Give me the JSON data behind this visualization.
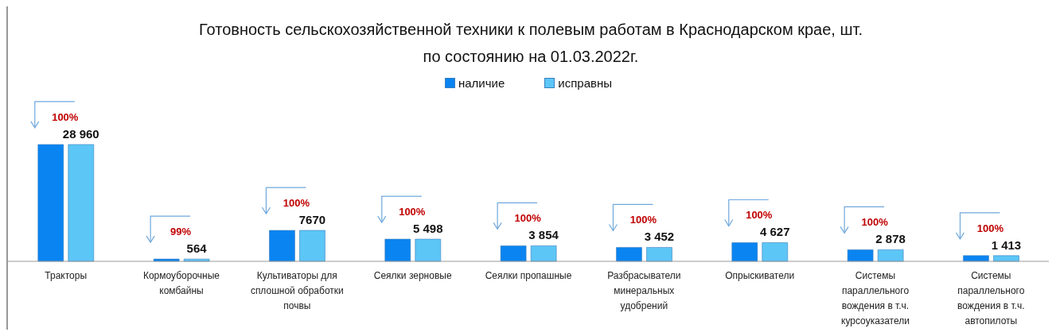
{
  "chart_data": {
    "type": "bar",
    "title": "Готовность сельскохозяйственной техники к полевым работам в Краснодарском крае, шт.",
    "subtitle": "по состоянию на 01.03.2022г.",
    "categories": [
      "Тракторы",
      "Кормоуборочные комбайны",
      "Культиваторы для сплошной обработки почвы",
      "Сеялки зерновые",
      "Сеялки пропашные",
      "Разбрасыватели минеральных удобрений",
      "Опрыскиватели",
      "Системы параллельного вождения в т.ч. курсоуказатели",
      "Системы параллельного вождения в т.ч. автопилоты"
    ],
    "series": [
      {
        "name": "наличие",
        "color": "#0a84f0",
        "values": [
          28960,
          570,
          7670,
          5498,
          3854,
          3452,
          4627,
          2878,
          1413
        ]
      },
      {
        "name": "исправны",
        "color": "#5cc6f6",
        "values": [
          28960,
          564,
          7670,
          5498,
          3854,
          3452,
          4627,
          2878,
          1413
        ],
        "value_labels": [
          "28 960",
          "564",
          "7670",
          "5 498",
          "3 854",
          "3 452",
          "4 627",
          "2 878",
          "1 413"
        ]
      }
    ],
    "annotations": [
      {
        "text": "100%",
        "x": "Тракторы",
        "y": 28960
      },
      {
        "text": "99%",
        "x": "Кормоуборочные комбайны",
        "y": 570
      },
      {
        "text": "100%",
        "x": "Культиваторы для сплошной обработки почвы",
        "y": 7670
      },
      {
        "text": "100%",
        "x": "Сеялки зерновые",
        "y": 5498
      },
      {
        "text": "100%",
        "x": "Сеялки пропашные",
        "y": 3854
      },
      {
        "text": "100%",
        "x": "Разбрасыватели минеральных удобрений",
        "y": 3452
      },
      {
        "text": "100%",
        "x": "Опрыскиватели",
        "y": 4627
      },
      {
        "text": "100%",
        "x": "Системы параллельного вождения в т.ч. курсоуказатели",
        "y": 2878
      },
      {
        "text": "100%",
        "x": "Системы параллельного вождения в т.ч. автопилоты",
        "y": 1413
      }
    ],
    "legend": "top",
    "grid": false
  }
}
